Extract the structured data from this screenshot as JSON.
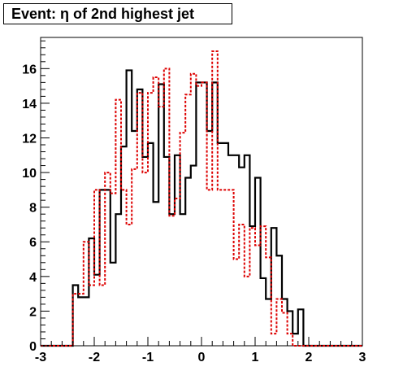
{
  "chart_data": {
    "type": "histogram",
    "title": "Event: η of 2nd highest jet",
    "xlabel": "",
    "ylabel": "",
    "xlim": [
      -3,
      3
    ],
    "ylim": [
      0,
      17.8
    ],
    "x_ticks": [
      -3,
      -2,
      -1,
      0,
      1,
      2,
      3
    ],
    "y_ticks": [
      0,
      2,
      4,
      6,
      8,
      10,
      12,
      14,
      16
    ],
    "grid": false,
    "legend": "none",
    "bin_edges": [
      -3.0,
      -2.9,
      -2.8,
      -2.7,
      -2.6,
      -2.5,
      -2.4,
      -2.3,
      -2.2,
      -2.1,
      -2.0,
      -1.9,
      -1.8,
      -1.7,
      -1.6,
      -1.5,
      -1.4,
      -1.3,
      -1.2,
      -1.1,
      -1.0,
      -0.9,
      -0.8,
      -0.7,
      -0.6,
      -0.5,
      -0.4,
      -0.3,
      -0.2,
      -0.1,
      0.0,
      0.1,
      0.2,
      0.3,
      0.4,
      0.5,
      0.6,
      0.7,
      0.8,
      0.9,
      1.0,
      1.1,
      1.2,
      1.3,
      1.4,
      1.5,
      1.6,
      1.7,
      1.8,
      1.9,
      2.0,
      2.1,
      2.2,
      2.3,
      2.4,
      2.5,
      2.6,
      2.7,
      2.8,
      2.9,
      3.0
    ],
    "series": [
      {
        "color": "#000000",
        "style": "solid",
        "values": [
          0,
          0,
          0,
          0,
          0,
          0,
          3.5,
          2.8,
          2.8,
          6.2,
          4.1,
          9.0,
          9.0,
          4.8,
          7.6,
          11.5,
          15.9,
          12.4,
          14.8,
          10.9,
          11.7,
          8.3,
          15.1,
          10.9,
          7.6,
          11.0,
          7.6,
          9.7,
          10.4,
          15.2,
          15.2,
          12.4,
          15.2,
          11.7,
          11.7,
          11.0,
          11.0,
          10.3,
          11.0,
          6.9,
          9.7,
          3.9,
          2.7,
          6.8,
          5.2,
          2.7,
          2.0,
          0.7,
          2.1,
          0,
          0,
          0,
          0,
          0,
          0,
          0,
          0,
          0,
          0,
          0
        ]
      },
      {
        "color": "#dd0000",
        "style": "dashed",
        "values": [
          0,
          0,
          0,
          0,
          0,
          0,
          3.0,
          3.0,
          6.0,
          3.5,
          9.0,
          3.5,
          10.0,
          8.8,
          14.2,
          9.0,
          7.0,
          10.2,
          14.6,
          10.0,
          14.6,
          15.5,
          13.8,
          16.0,
          7.5,
          8.5,
          12.3,
          14.5,
          15.7,
          15.0,
          15.2,
          9.0,
          17.0,
          9.0,
          9.0,
          9.0,
          5.0,
          7.0,
          4.0,
          6.8,
          5.8,
          6.9,
          5.1,
          0.7,
          2.7,
          1.9,
          0.7,
          0,
          0,
          0,
          0,
          0,
          0,
          0,
          0,
          0,
          0,
          0,
          0,
          0
        ]
      }
    ]
  }
}
